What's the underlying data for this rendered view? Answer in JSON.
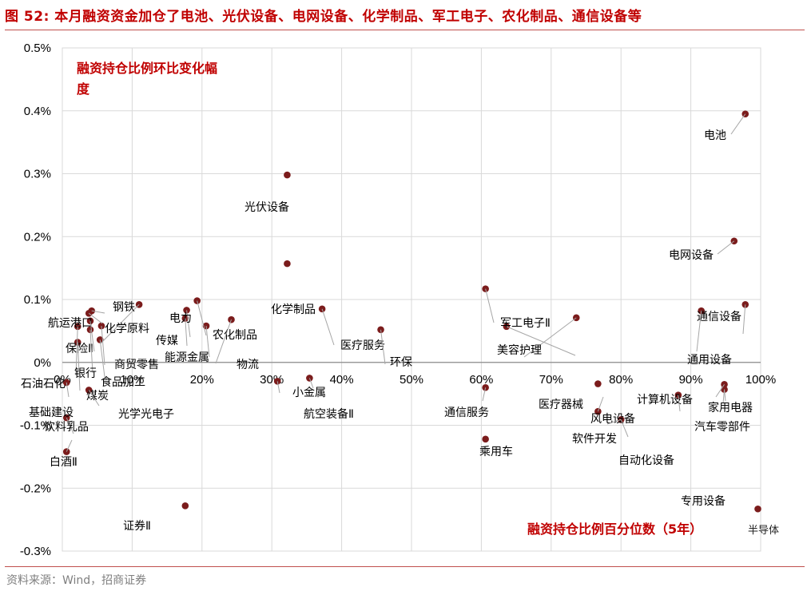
{
  "header": {
    "title": "图 52:  本月融资资金加仓了电池、光伏设备、电网设备、化学制品、军工电子、农化制品、通信设备等"
  },
  "footer": {
    "source": "资料来源：Wind，招商证券"
  },
  "colors": {
    "accent": "#c00000",
    "rule": "#c0504d",
    "marker": "#7b1c1c",
    "grid": "#d9d9d9"
  },
  "chart_data": {
    "type": "scatter",
    "title": "",
    "ylabel": "融资持仓比例环比变化幅度",
    "xlabel": "融资持仓比例百分位数（5年）",
    "xlim": [
      0,
      100
    ],
    "ylim": [
      -0.3,
      0.5
    ],
    "x_ticks": [
      "0%",
      "10%",
      "20%",
      "30%",
      "40%",
      "50%",
      "60%",
      "70%",
      "80%",
      "90%",
      "100%"
    ],
    "y_ticks": [
      "0.5%",
      "0.4%",
      "0.3%",
      "0.2%",
      "0.1%",
      "0%",
      "-0.1%",
      "-0.2%",
      "-0.3%"
    ],
    "watermark": "半导体",
    "points": [
      {
        "name": "电池",
        "x": 97.8,
        "y": 0.395
      },
      {
        "name": "光伏设备",
        "x": 32.2,
        "y": 0.298
      },
      {
        "name": "电网设备",
        "x": 96.2,
        "y": 0.193
      },
      {
        "name": "化学制品",
        "x": 32.2,
        "y": 0.157
      },
      {
        "name": "军工电子Ⅱ",
        "x": 60.6,
        "y": 0.117
      },
      {
        "name": "通信设备",
        "x": 97.8,
        "y": 0.092
      },
      {
        "name": "农化制品",
        "x": 19.3,
        "y": 0.098
      },
      {
        "name": "化学原料",
        "x": 11.0,
        "y": 0.092
      },
      {
        "name": "医疗服务",
        "x": 37.2,
        "y": 0.085
      },
      {
        "name": "通用设备",
        "x": 91.5,
        "y": 0.082
      },
      {
        "name": "钢铁",
        "x": 4.2,
        "y": 0.082
      },
      {
        "name": "航运港口",
        "x": 3.8,
        "y": 0.078
      },
      {
        "name": "电力",
        "x": 17.8,
        "y": 0.083
      },
      {
        "name": "美容护理",
        "x": 73.6,
        "y": 0.071
      },
      {
        "name": "物流",
        "x": 24.2,
        "y": 0.068
      },
      {
        "name": "传媒",
        "x": 17.6,
        "y": 0.07
      },
      {
        "name": "美容护理2",
        "x": 63.6,
        "y": 0.057
      },
      {
        "name": "保险Ⅱ",
        "x": 4.0,
        "y": 0.066
      },
      {
        "name": "商贸零售",
        "x": 5.6,
        "y": 0.058
      },
      {
        "name": "能源金属",
        "x": 20.6,
        "y": 0.058
      },
      {
        "name": "环保",
        "x": 45.6,
        "y": 0.052
      },
      {
        "name": "石油石化",
        "x": 2.2,
        "y": 0.057
      },
      {
        "name": "银行",
        "x": 4.0,
        "y": 0.052
      },
      {
        "name": "食品加工",
        "x": 5.4,
        "y": 0.036
      },
      {
        "name": "煤炭",
        "x": 2.2,
        "y": 0.032
      },
      {
        "name": "小金属",
        "x": 35.4,
        "y": -0.025
      },
      {
        "name": "航空装备Ⅱ",
        "x": 30.8,
        "y": -0.03
      },
      {
        "name": "基础建设",
        "x": 0.6,
        "y": -0.032
      },
      {
        "name": "光学光电子",
        "x": 3.8,
        "y": -0.044
      },
      {
        "name": "通信服务",
        "x": 60.6,
        "y": -0.04
      },
      {
        "name": "医疗器械",
        "x": 76.7,
        "y": -0.034
      },
      {
        "name": "计算机设备",
        "x": 94.8,
        "y": -0.035
      },
      {
        "name": "家用电器",
        "x": 94.8,
        "y": -0.043
      },
      {
        "name": "汽车零部件",
        "x": 88.2,
        "y": -0.052
      },
      {
        "name": "风电设备",
        "x": 76.7,
        "y": -0.078
      },
      {
        "name": "软件开发",
        "x": 80.0,
        "y": -0.091
      },
      {
        "name": "饮料乳品",
        "x": 0.6,
        "y": -0.088
      },
      {
        "name": "乘用车",
        "x": 60.6,
        "y": -0.122
      },
      {
        "name": "白酒Ⅱ",
        "x": 0.6,
        "y": -0.142
      },
      {
        "name": "证券Ⅱ",
        "x": 17.6,
        "y": -0.228
      },
      {
        "name": "半导体",
        "x": 99.6,
        "y": -0.233
      }
    ]
  }
}
